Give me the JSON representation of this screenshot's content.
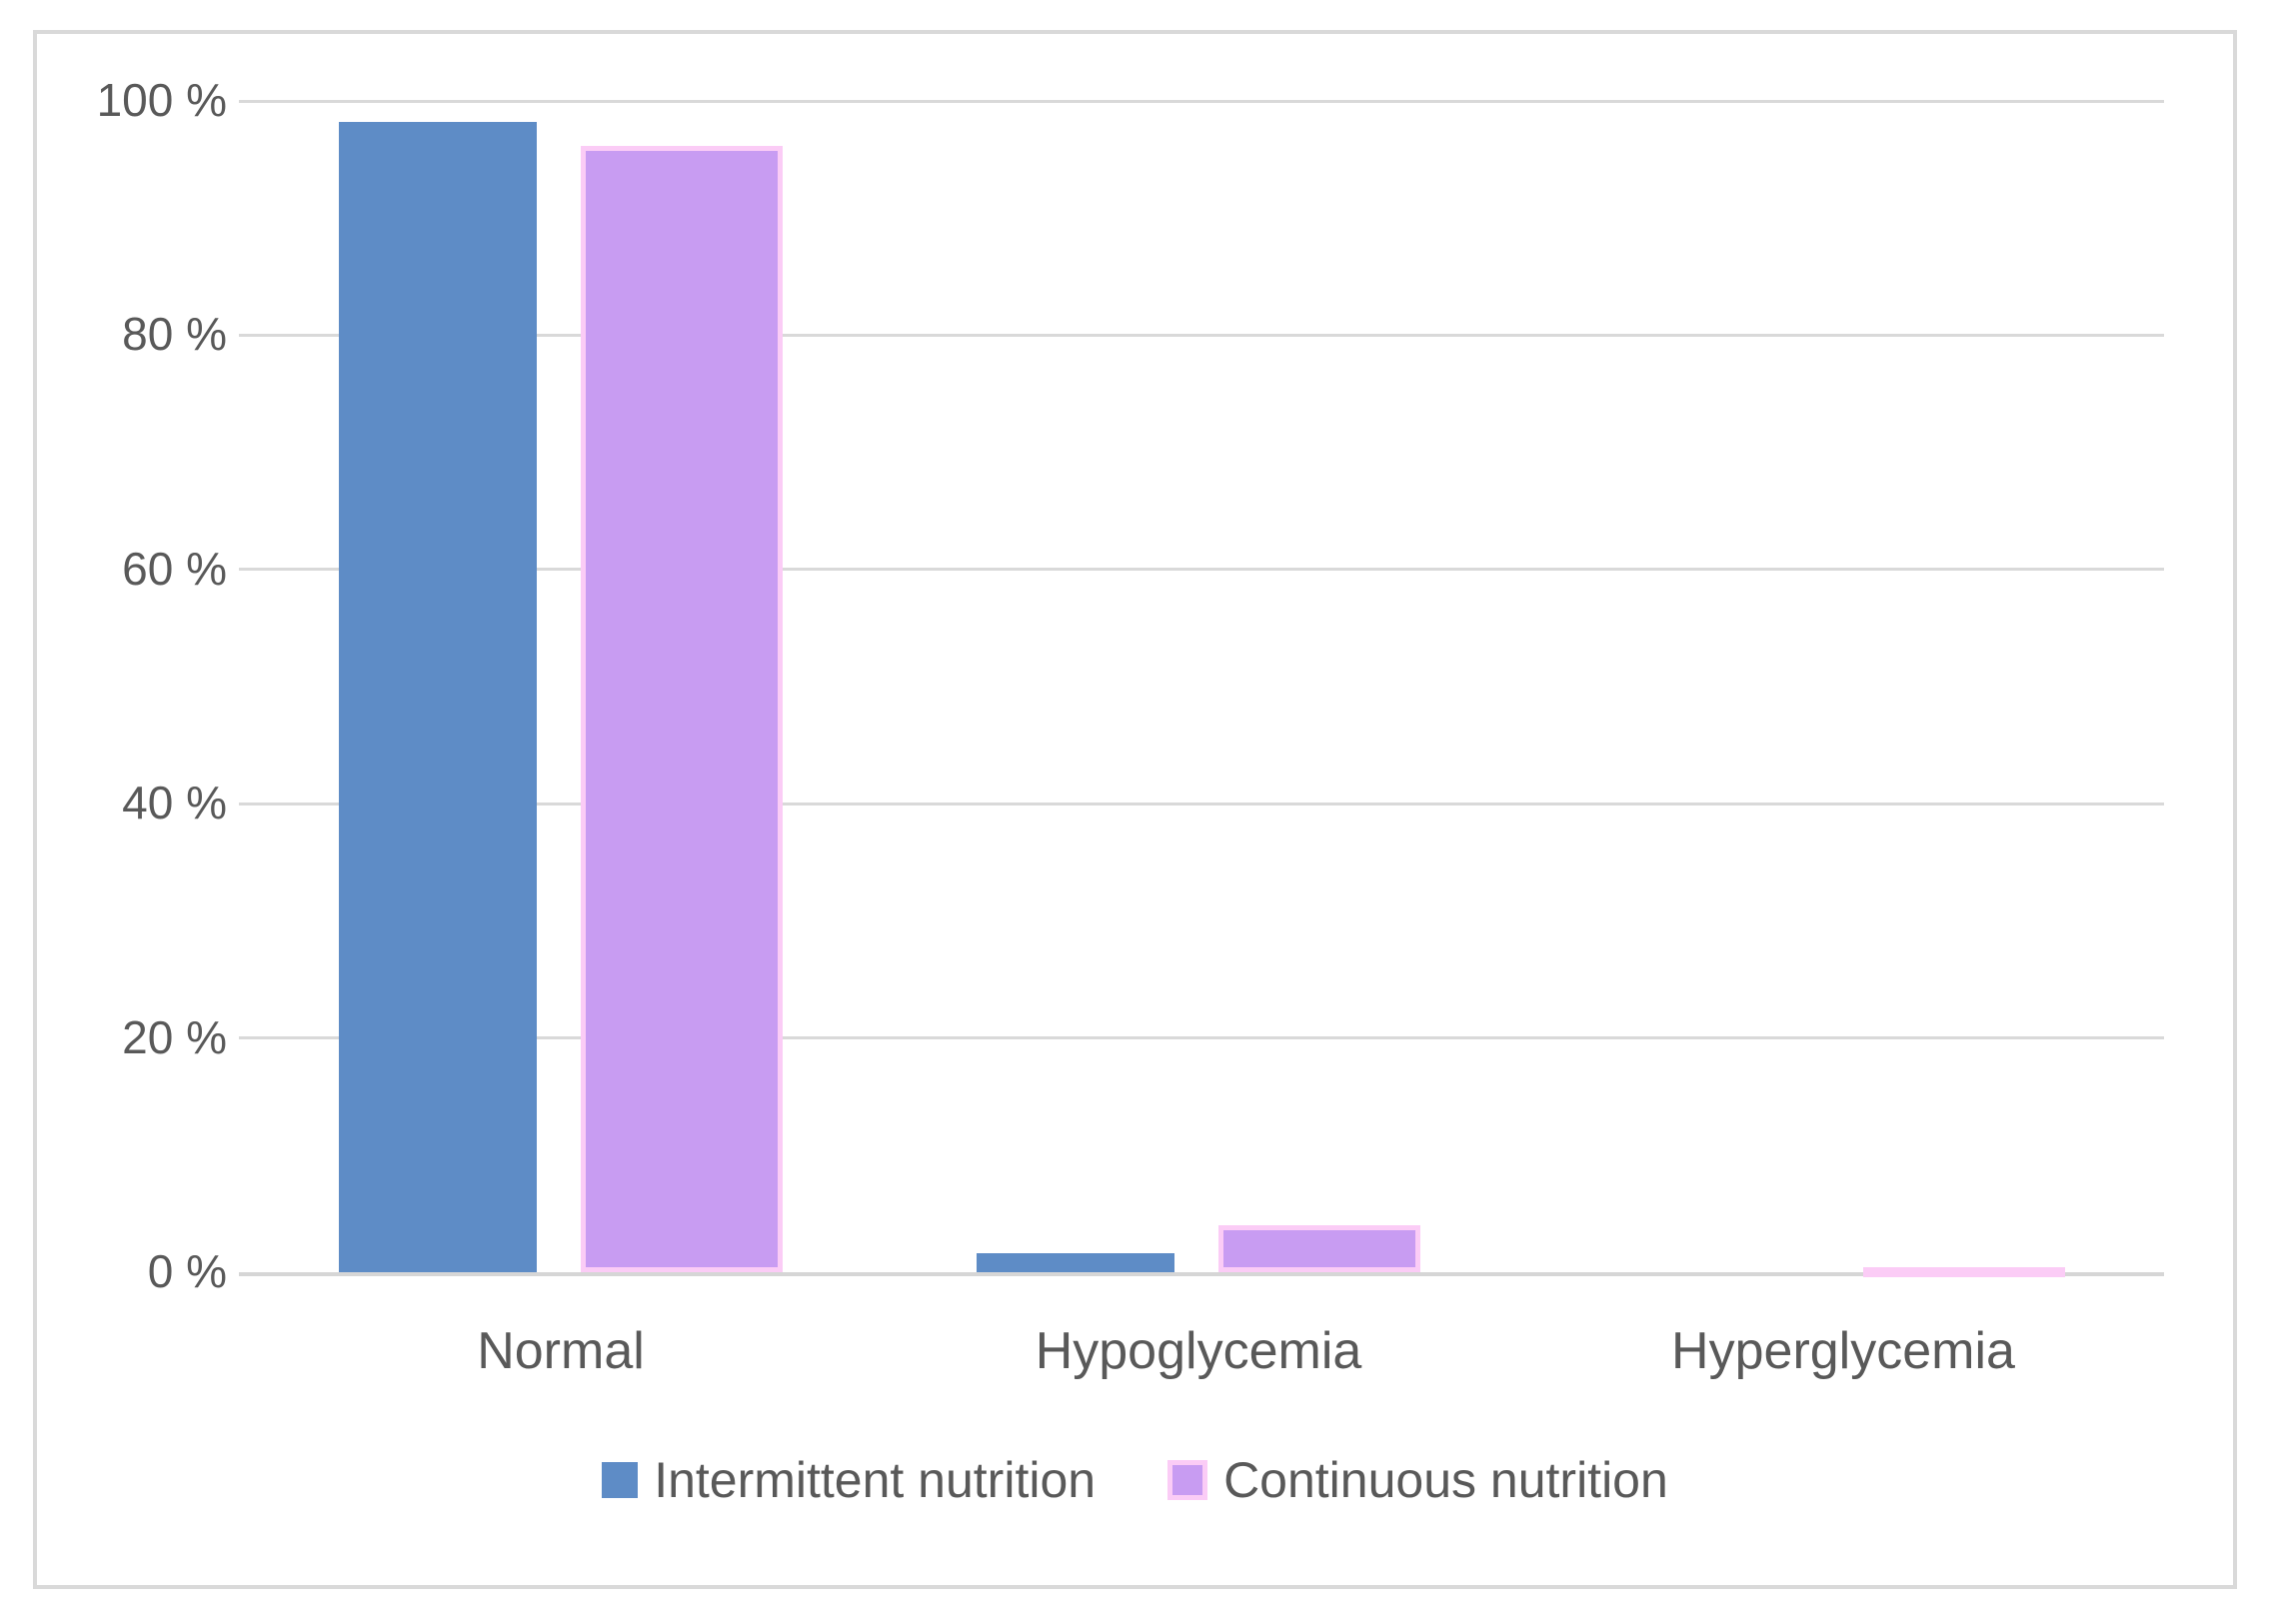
{
  "figure": {
    "background_color": "#ffffff",
    "border_color": "#d9d9d9"
  },
  "chart_data": {
    "type": "bar",
    "title": "",
    "xlabel": "",
    "ylabel": "",
    "ylim": [
      0,
      100
    ],
    "grid": true,
    "legend_position": "bottom",
    "categories": [
      "Normal",
      "Hypoglycemia",
      "Hyperglycemia"
    ],
    "series": [
      {
        "name": "Intermittent nutrition",
        "color": "#5e8cc6",
        "values": [
          98.2,
          1.6,
          0
        ]
      },
      {
        "name": "Continuous nutrition",
        "color": "#c89cf2",
        "border_color": "#fbccf6",
        "values": [
          96.2,
          4.0,
          0.4
        ]
      }
    ],
    "yticks": [
      {
        "value": 0,
        "label": "0 %"
      },
      {
        "value": 20,
        "label": "20 %"
      },
      {
        "value": 40,
        "label": "40 %"
      },
      {
        "value": 60,
        "label": "60 %"
      },
      {
        "value": 80,
        "label": "80 %"
      },
      {
        "value": 100,
        "label": "100 %"
      }
    ],
    "colors": {
      "gridline": "#d9d9d9",
      "axis_line": "#d6d6d6",
      "text": "#595959"
    }
  }
}
